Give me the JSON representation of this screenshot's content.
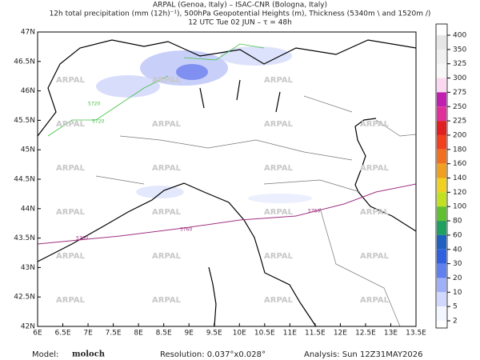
{
  "header": {
    "lines": [
      "ARPAL (Genoa, Italy)  –  ISAC-CNR (Bologna, Italy)",
      "12h total precipitation (mm (12h)⁻¹), 500hPa Geopotential Heights (m), Thickness (5340m \\ and 1520m /)",
      "12 UTC Tue 02 JUN  –  τ = 48h"
    ]
  },
  "map": {
    "xticks": [
      "6E",
      "6.5E",
      "7E",
      "7.5E",
      "8E",
      "8.5E",
      "9E",
      "9.5E",
      "10E",
      "10.5E",
      "11E",
      "11.5E",
      "12E",
      "12.5E",
      "13E",
      "13.5E"
    ],
    "yticks": [
      "47N",
      "46.5N",
      "46N",
      "45.5N",
      "45N",
      "44.5N",
      "44N",
      "43.5N",
      "43N",
      "42.5N",
      "42N"
    ],
    "watermark": "ARPAL",
    "contour_label": "5760",
    "green_label": "5720"
  },
  "colorbar": {
    "labels": [
      400,
      350,
      325,
      300,
      275,
      250,
      225,
      200,
      180,
      160,
      140,
      120,
      100,
      80,
      60,
      40,
      30,
      20,
      10,
      5,
      2
    ],
    "colors": [
      "#e6e6e6",
      "#f0f0f0",
      "#f8f8f8",
      "#fbd8f0",
      "#c020b0",
      "#e0309a",
      "#e02020",
      "#f04020",
      "#f07020",
      "#f0a020",
      "#f0d020",
      "#c0e020",
      "#60c030",
      "#20a060",
      "#2060c0",
      "#3060e0",
      "#6080f0",
      "#a0b0f8",
      "#d0d8ff",
      "#f4f6ff"
    ]
  },
  "footer": {
    "model_label": "Model:",
    "model": "moloch",
    "resolution": "Resolution: 0.037°x0.028°",
    "analysis": "Analysis: Sun 12Z31MAY2026"
  }
}
